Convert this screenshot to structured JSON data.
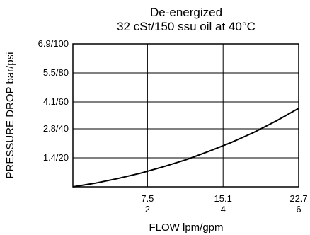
{
  "chart_data": {
    "type": "line",
    "title": "De-energized",
    "subtitle": "32 cSt/150 ssu oil at 40°C",
    "xlabel": "FLOW lpm/gpm",
    "ylabel": "PRESSURE DROP bar/psi",
    "xlim": [
      0,
      22.7
    ],
    "ylim": [
      0,
      6.9
    ],
    "grid": true,
    "x_ticks": [
      {
        "value": 7.5,
        "primary": "7.5",
        "secondary": "2"
      },
      {
        "value": 15.1,
        "primary": "15.1",
        "secondary": "4"
      },
      {
        "value": 22.7,
        "primary": "22.7",
        "secondary": "6"
      }
    ],
    "y_ticks": [
      {
        "value": 1.4,
        "label": "1.4/20"
      },
      {
        "value": 2.8,
        "label": "2.8/40"
      },
      {
        "value": 4.1,
        "label": "4.1/60"
      },
      {
        "value": 5.5,
        "label": "5.5/80"
      },
      {
        "value": 6.9,
        "label": "6.9/100"
      }
    ],
    "series": [
      {
        "x": [
          0,
          2.3,
          4.5,
          6.8,
          9.1,
          11.4,
          13.6,
          15.9,
          18.2,
          20.4,
          22.7
        ],
        "y": [
          0,
          0.18,
          0.4,
          0.66,
          0.97,
          1.31,
          1.7,
          2.14,
          2.63,
          3.17,
          3.79
        ]
      }
    ]
  }
}
